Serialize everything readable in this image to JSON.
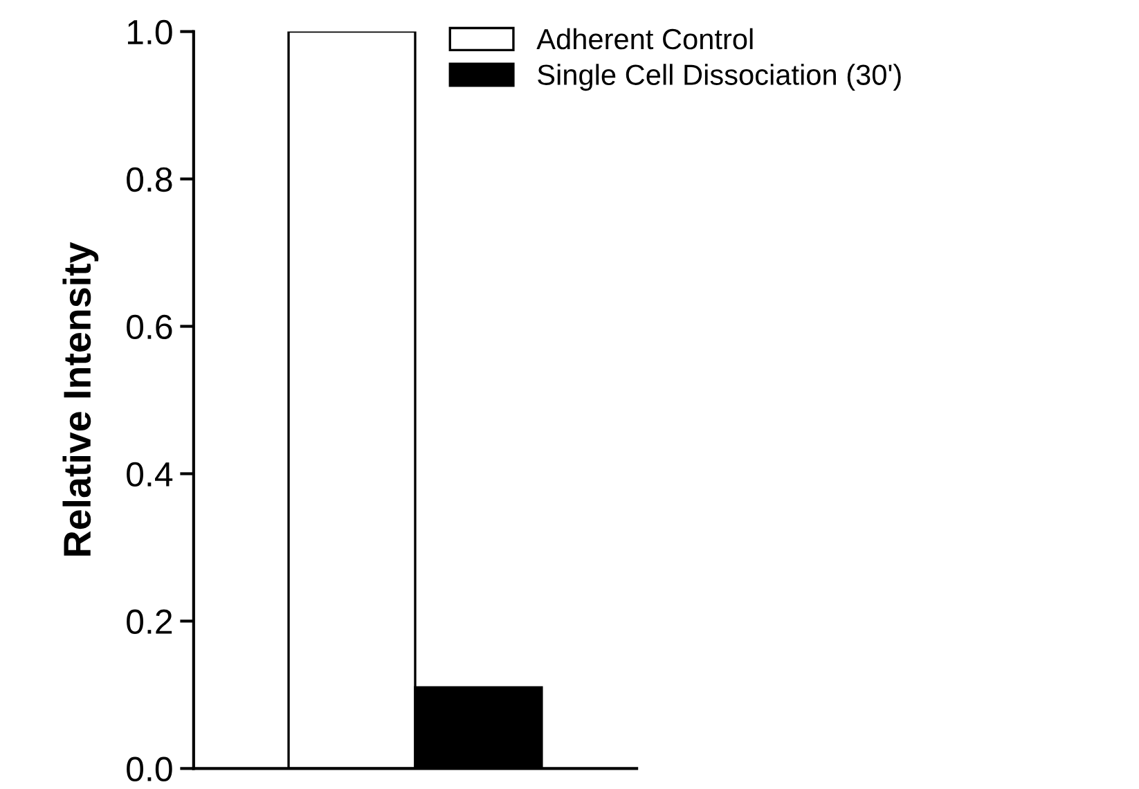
{
  "chart_data": {
    "type": "bar",
    "ylabel": "Relative Intensity",
    "categories": [
      null
    ],
    "series": [
      {
        "name": "Adherent Control",
        "color": "#ffffff",
        "values": [
          1.0
        ]
      },
      {
        "name": "Single Cell Dissociation (30')",
        "color": "#000000",
        "values": [
          0.11
        ]
      }
    ],
    "ylim": [
      0,
      1.0
    ],
    "yticks": [
      {
        "value": 0,
        "label": "0.0"
      },
      {
        "value": 0.2,
        "label": "0.2"
      },
      {
        "value": 0.4,
        "label": "0.4"
      },
      {
        "value": 0.6,
        "label": "0.6"
      },
      {
        "value": 0.8,
        "label": "0.8"
      },
      {
        "value": 1.0,
        "label": "1.0"
      }
    ],
    "legend": "top right"
  }
}
